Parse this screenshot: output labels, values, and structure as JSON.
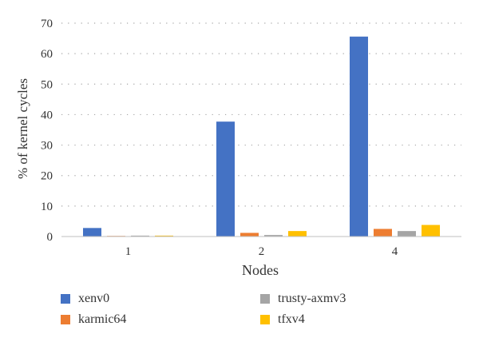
{
  "chart_data": {
    "type": "bar",
    "categories": [
      "1",
      "2",
      "4"
    ],
    "series": [
      {
        "name": "xenv0",
        "color": "#4472C4",
        "values": [
          2.8,
          37.7,
          65.6
        ]
      },
      {
        "name": "karmic64",
        "color": "#ED7D31",
        "values": [
          0.2,
          1.2,
          2.5
        ]
      },
      {
        "name": "trusty-axmv3",
        "color": "#A5A5A5",
        "values": [
          0.3,
          0.5,
          1.8
        ]
      },
      {
        "name": "tfxv4",
        "color": "#FFC000",
        "values": [
          0.3,
          1.8,
          3.8
        ]
      }
    ],
    "xlabel": "Nodes",
    "ylabel": "% of kernel cycles",
    "ylim": [
      0,
      70
    ],
    "yticks": [
      "0",
      "10",
      "20",
      "30",
      "40",
      "50",
      "60",
      "70"
    ],
    "grid": "horizontal dotted",
    "legend_position": "bottom"
  }
}
